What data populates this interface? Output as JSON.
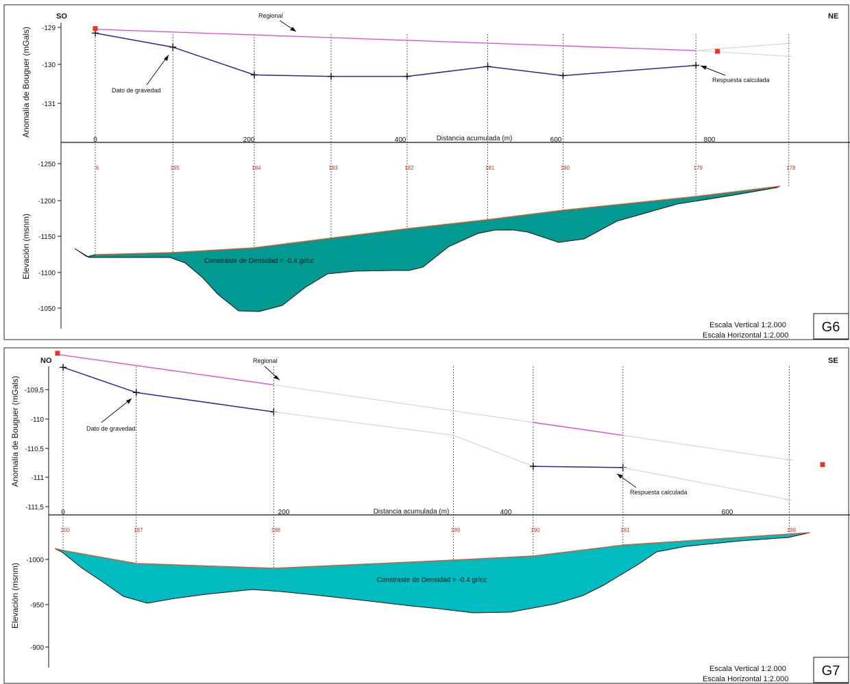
{
  "chart_data": [
    {
      "type": "line",
      "panel": "G6",
      "left_label": "SO",
      "right_label": "NE",
      "x_axis": {
        "label": "Distancia acumulada (m)",
        "ticks": [
          0,
          200,
          400,
          600,
          800
        ]
      },
      "gravity_axis": {
        "label": "Anomalía de Bouguer (mGals)",
        "ticks": [
          -129,
          -130,
          -131
        ],
        "tick_labels": [
          "-129",
          "-130",
          "-131"
        ],
        "range": [
          -131.9,
          -128.9
        ]
      },
      "elevation_axis": {
        "label": "Elevación (msnm)",
        "ticks": [
          -1250,
          -1200,
          -1150,
          -1100,
          -1050
        ],
        "tick_labels": [
          "-1250",
          "-1200",
          "-1150",
          "-1100",
          "-1050"
        ]
      },
      "stations": {
        "x": [
          0,
          101,
          207,
          307,
          406,
          511,
          609,
          782,
          903
        ],
        "labels": [
          "6",
          "185",
          "184",
          "183",
          "182",
          "181",
          "180",
          "179",
          "178"
        ]
      },
      "series": [
        {
          "name": "Regional",
          "color": "#e040e0",
          "x": [
            0,
            782
          ],
          "y": [
            -129.05,
            -129.61
          ]
        },
        {
          "color": "#d8d8d8",
          "x": [
            782,
            903
          ],
          "y": [
            -129.61,
            -129.42
          ]
        },
        {
          "color": "#d8d8d8",
          "x": [
            782,
            903
          ],
          "y": [
            -129.61,
            -129.76
          ]
        },
        {
          "name": "Dato de gravedad",
          "color": "#22289a",
          "x": [
            0,
            101,
            207,
            307,
            406,
            511,
            609,
            782
          ],
          "y": [
            -129.15,
            -129.52,
            -130.25,
            -130.29,
            -130.29,
            -130.03,
            -130.27,
            -130.0
          ]
        }
      ],
      "regional_endpoints": {
        "color": "#e8341c",
        "x": [
          0,
          810
        ],
        "y": [
          -129.03,
          -129.63
        ]
      },
      "annotations": [
        "Regional",
        "Dato de gravedad",
        "Respuesta calculada"
      ],
      "density_contrast": "Constraste de Densidad = -0.4 gr/cc",
      "scale_vertical": "Escala Vertical 1:2.000",
      "scale_horizontal": "Escala Horizontal 1:2.000"
    },
    {
      "type": "line",
      "panel": "G7",
      "left_label": "NO",
      "right_label": "SE",
      "x_axis": {
        "label": "Distancia acumulada (m)",
        "ticks": [
          0,
          200,
          400,
          600
        ]
      },
      "gravity_axis": {
        "label": "Anomalía de Bouguer (mGals)",
        "ticks": [
          -109.5,
          -110,
          -110.5,
          -111,
          -111.5
        ],
        "tick_labels": [
          "-109,5",
          "-110",
          "-110,5",
          "-111",
          "-111,5"
        ],
        "range": [
          -111.83,
          -108.8
        ]
      },
      "elevation_axis": {
        "label": "Elevación (msnm)",
        "ticks": [
          -1000,
          -950,
          -900
        ],
        "tick_labels": [
          "-1000",
          "-950",
          "-900"
        ]
      },
      "stations": {
        "x": [
          0,
          66,
          190,
          352,
          424,
          505,
          655
        ],
        "labels": [
          "200",
          "187",
          "188",
          "189",
          "190",
          "191",
          "199"
        ]
      },
      "series": [
        {
          "name": "Regional",
          "color": "#e040e0",
          "x": [
            -5,
            190
          ],
          "y": [
            -108.9,
            -109.42
          ]
        },
        {
          "color": "#d8d8d8",
          "x": [
            190,
            424
          ],
          "y": [
            -109.42,
            -110.06
          ]
        },
        {
          "color": "#e040e0",
          "x": [
            424,
            505
          ],
          "y": [
            -110.06,
            -110.28
          ]
        },
        {
          "color": "#d8d8d8",
          "x": [
            505,
            655
          ],
          "y": [
            -110.28,
            -110.7
          ]
        },
        {
          "name": "Dato de gravedad",
          "color": "#22289a",
          "x": [
            0,
            66,
            190
          ],
          "y": [
            -109.12,
            -109.55,
            -109.88
          ]
        },
        {
          "color": "#d8d8d8",
          "x": [
            190,
            352,
            424
          ],
          "y": [
            -109.88,
            -110.28,
            -110.81
          ]
        },
        {
          "color": "#22289a",
          "x": [
            424,
            505
          ],
          "y": [
            -110.81,
            -110.83
          ]
        },
        {
          "color": "#d8d8d8",
          "x": [
            505,
            655
          ],
          "y": [
            -110.83,
            -111.38
          ]
        }
      ],
      "regional_endpoints": {
        "color": "#e8341c",
        "x": [
          -5,
          685
        ],
        "y": [
          -108.88,
          -110.78
        ]
      },
      "annotations": [
        "Regional",
        "Dato de gravedad",
        "Respuesta calculada"
      ],
      "density_contrast": "Constraste de Densidad = -0.4 gr/cc",
      "scale_vertical": "Escala Vertical 1:2.000",
      "scale_horizontal": "Escala Horizontal 1:2.000"
    }
  ]
}
